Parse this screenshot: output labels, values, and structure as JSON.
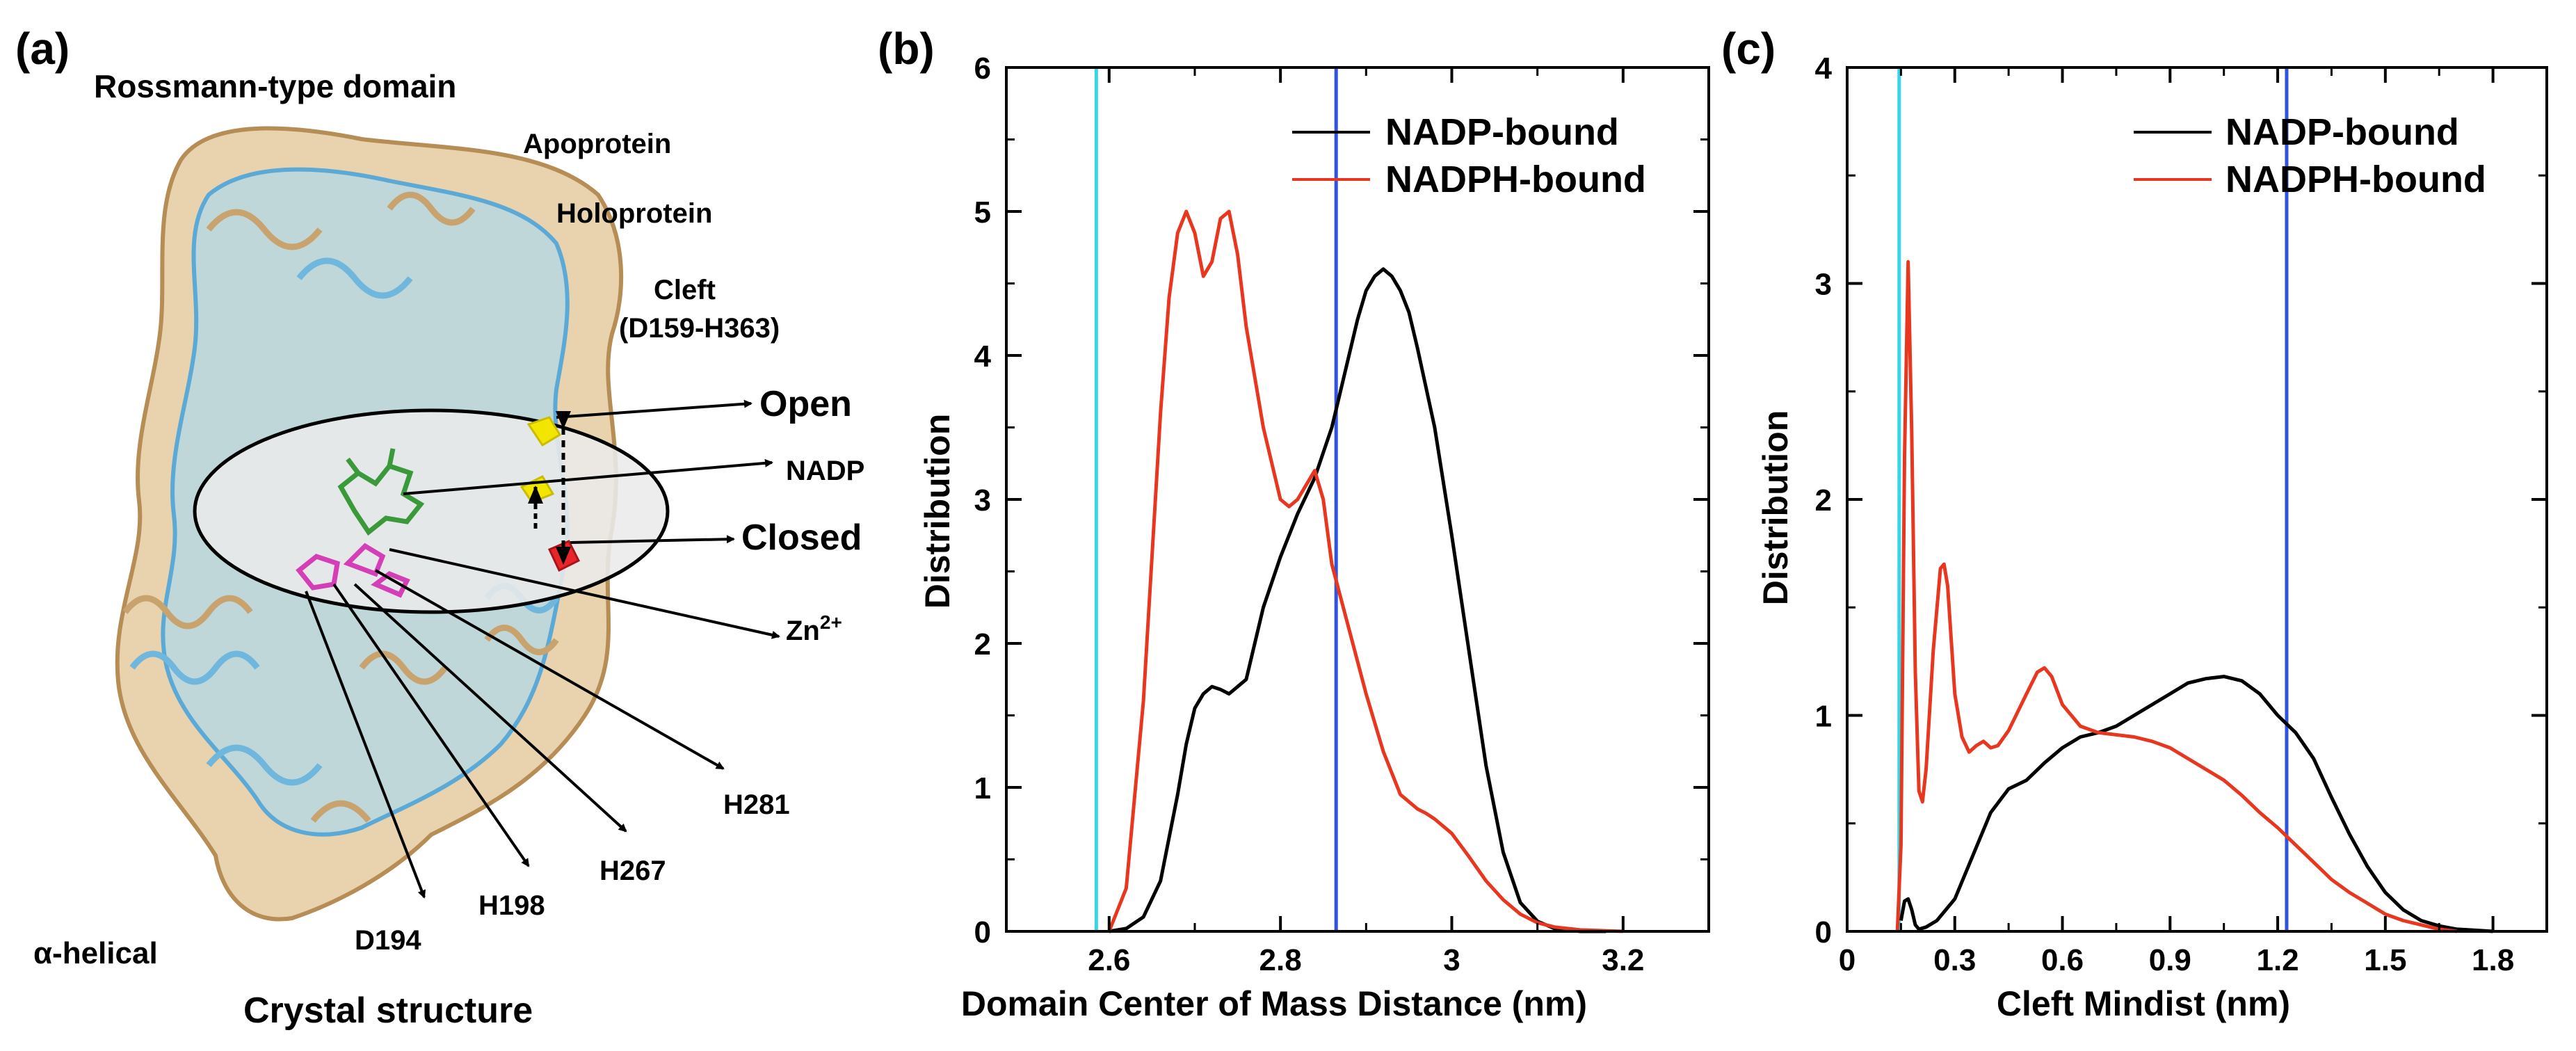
{
  "panel_a": {
    "letter": "(a)",
    "title_domain_top": "Rossmann-type domain",
    "title_domain_bottom": "α-helical",
    "caption": "Crystal structure",
    "labels": {
      "apoprotein": "Apoprotein",
      "holoprotein": "Holoprotein",
      "cleft_line1": "Cleft",
      "cleft_line2": "(D159-H363)",
      "open": "Open",
      "nadp": "NADP",
      "closed": "Closed",
      "zn_base": "Zn",
      "zn_sup": "2+",
      "h281": "H281",
      "h267": "H267",
      "h198": "H198",
      "d194": "D194"
    },
    "colors": {
      "apoprotein": "#d9b98a",
      "holoprotein": "#8ec8e6",
      "nadp": "#3a9a3a",
      "zinc_residues": "#d43fb8",
      "cleft_residue_open": "#f2e600",
      "cleft_residue_closed": "#e8262a",
      "ellipse_fill": "#ebebeb"
    }
  },
  "chart_data": [
    {
      "type": "line",
      "panel": "(b)",
      "xlabel": "Domain Center of Mass Distance (nm)",
      "ylabel": "Distribution",
      "xlim": [
        2.48,
        3.3
      ],
      "ylim": [
        0,
        6
      ],
      "xticks": [
        "2.6",
        "2.8",
        "3",
        "3.2"
      ],
      "xtick_values": [
        2.6,
        2.8,
        3.0,
        3.2
      ],
      "yticks": [
        "0",
        "1",
        "2",
        "3",
        "4",
        "5",
        "6"
      ],
      "ytick_values": [
        0,
        1,
        2,
        3,
        4,
        5,
        6
      ],
      "legend_position": "top-right",
      "vlines": [
        {
          "x": 2.585,
          "color": "#35d6e6"
        },
        {
          "x": 2.865,
          "color": "#2f55e0"
        }
      ],
      "series": [
        {
          "name": "NADP-bound",
          "color": "#000000",
          "x": [
            2.6,
            2.62,
            2.64,
            2.66,
            2.68,
            2.69,
            2.7,
            2.71,
            2.72,
            2.73,
            2.74,
            2.76,
            2.78,
            2.8,
            2.82,
            2.84,
            2.86,
            2.87,
            2.88,
            2.89,
            2.9,
            2.91,
            2.92,
            2.93,
            2.94,
            2.95,
            2.96,
            2.98,
            3.0,
            3.02,
            3.04,
            3.06,
            3.08,
            3.1,
            3.12,
            3.15,
            3.18
          ],
          "values": [
            0,
            0.02,
            0.1,
            0.35,
            0.95,
            1.3,
            1.55,
            1.65,
            1.7,
            1.68,
            1.65,
            1.75,
            2.25,
            2.6,
            2.9,
            3.15,
            3.5,
            3.75,
            4.0,
            4.25,
            4.45,
            4.55,
            4.6,
            4.55,
            4.45,
            4.3,
            4.05,
            3.5,
            2.75,
            1.95,
            1.15,
            0.55,
            0.2,
            0.07,
            0.02,
            0,
            0
          ]
        },
        {
          "name": "NADPH-bound",
          "color": "#e8371e",
          "x": [
            2.6,
            2.62,
            2.64,
            2.65,
            2.66,
            2.67,
            2.68,
            2.69,
            2.7,
            2.71,
            2.72,
            2.73,
            2.74,
            2.75,
            2.76,
            2.78,
            2.8,
            2.81,
            2.82,
            2.83,
            2.84,
            2.85,
            2.86,
            2.88,
            2.9,
            2.92,
            2.94,
            2.96,
            2.97,
            2.98,
            3.0,
            3.02,
            3.04,
            3.06,
            3.08,
            3.1,
            3.12,
            3.15,
            3.2
          ],
          "values": [
            0,
            0.3,
            1.6,
            2.6,
            3.6,
            4.4,
            4.85,
            5.0,
            4.85,
            4.55,
            4.65,
            4.95,
            5.0,
            4.7,
            4.2,
            3.5,
            3.0,
            2.95,
            3.0,
            3.1,
            3.2,
            3.0,
            2.55,
            2.1,
            1.65,
            1.25,
            0.95,
            0.85,
            0.82,
            0.78,
            0.68,
            0.52,
            0.35,
            0.22,
            0.12,
            0.06,
            0.03,
            0.01,
            0
          ]
        }
      ]
    },
    {
      "type": "line",
      "panel": "(c)",
      "xlabel": "Cleft Mindist (nm)",
      "ylabel": "Distribution",
      "xlim": [
        0,
        1.95
      ],
      "ylim": [
        0,
        4
      ],
      "xticks": [
        "0",
        "0.3",
        "0.6",
        "0.9",
        "1.2",
        "1.5",
        "1.8"
      ],
      "xtick_values": [
        0,
        0.3,
        0.6,
        0.9,
        1.2,
        1.5,
        1.8
      ],
      "yticks": [
        "0",
        "1",
        "2",
        "3",
        "4"
      ],
      "ytick_values": [
        0,
        1,
        2,
        3,
        4
      ],
      "legend_position": "top-right",
      "vlines": [
        {
          "x": 0.145,
          "color": "#35d6e6"
        },
        {
          "x": 1.225,
          "color": "#2f55e0"
        }
      ],
      "series": [
        {
          "name": "NADP-bound",
          "color": "#000000",
          "x": [
            0.15,
            0.16,
            0.17,
            0.18,
            0.19,
            0.2,
            0.22,
            0.25,
            0.3,
            0.35,
            0.4,
            0.45,
            0.5,
            0.55,
            0.6,
            0.65,
            0.7,
            0.75,
            0.8,
            0.85,
            0.9,
            0.95,
            1.0,
            1.05,
            1.1,
            1.15,
            1.2,
            1.25,
            1.3,
            1.35,
            1.4,
            1.45,
            1.5,
            1.55,
            1.6,
            1.65,
            1.7,
            1.75,
            1.8
          ],
          "values": [
            0.05,
            0.14,
            0.15,
            0.1,
            0.03,
            0.01,
            0.02,
            0.05,
            0.15,
            0.35,
            0.55,
            0.66,
            0.7,
            0.78,
            0.85,
            0.9,
            0.92,
            0.95,
            1.0,
            1.05,
            1.1,
            1.15,
            1.17,
            1.18,
            1.16,
            1.1,
            1.0,
            0.92,
            0.8,
            0.62,
            0.45,
            0.3,
            0.18,
            0.1,
            0.05,
            0.025,
            0.01,
            0.005,
            0
          ]
        },
        {
          "name": "NADPH-bound",
          "color": "#e8371e",
          "x": [
            0.14,
            0.15,
            0.16,
            0.17,
            0.18,
            0.19,
            0.2,
            0.21,
            0.22,
            0.24,
            0.26,
            0.27,
            0.28,
            0.3,
            0.32,
            0.34,
            0.36,
            0.38,
            0.4,
            0.42,
            0.45,
            0.5,
            0.53,
            0.55,
            0.57,
            0.6,
            0.65,
            0.7,
            0.75,
            0.8,
            0.85,
            0.9,
            0.95,
            1.0,
            1.05,
            1.1,
            1.15,
            1.2,
            1.25,
            1.3,
            1.35,
            1.4,
            1.45,
            1.5,
            1.55,
            1.6,
            1.65,
            1.7
          ],
          "values": [
            0,
            0.4,
            2.2,
            3.1,
            2.3,
            1.2,
            0.65,
            0.6,
            0.75,
            1.3,
            1.68,
            1.7,
            1.6,
            1.1,
            0.9,
            0.83,
            0.86,
            0.88,
            0.85,
            0.86,
            0.93,
            1.1,
            1.2,
            1.22,
            1.18,
            1.05,
            0.95,
            0.92,
            0.91,
            0.9,
            0.88,
            0.85,
            0.8,
            0.75,
            0.7,
            0.63,
            0.55,
            0.48,
            0.4,
            0.32,
            0.24,
            0.18,
            0.13,
            0.08,
            0.05,
            0.03,
            0.01,
            0
          ]
        }
      ]
    }
  ]
}
